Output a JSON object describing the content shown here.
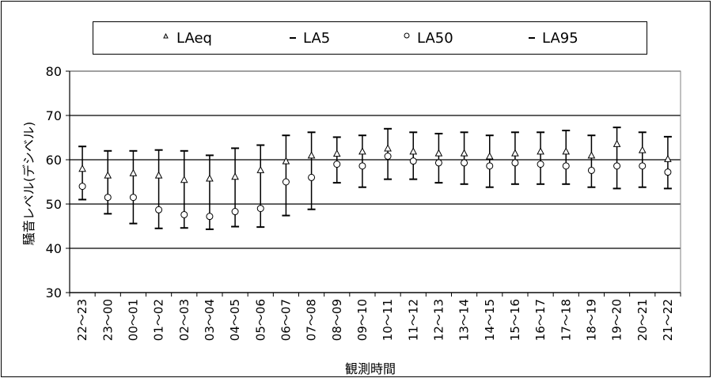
{
  "chart_data": {
    "type": "scatter",
    "ylabel": "騒音レベル(デシベル)",
    "xlabel": "観測時間",
    "ylim": [
      30,
      80
    ],
    "yticks": [
      30,
      40,
      50,
      60,
      70,
      80
    ],
    "grid": "horizontal",
    "legend_placement": "top",
    "categories": [
      "22～23",
      "23～00",
      "00～01",
      "01～02",
      "02～03",
      "03～04",
      "04～05",
      "05～06",
      "06～07",
      "07～08",
      "08～09",
      "09～10",
      "10～11",
      "11～12",
      "12～13",
      "13～14",
      "14～15",
      "15～16",
      "16～17",
      "17～18",
      "18～19",
      "19～20",
      "20～21",
      "21～22"
    ],
    "series": [
      {
        "name": "LAeq",
        "marker": "triangle",
        "values": [
          58,
          56.5,
          57,
          56.5,
          55.5,
          55.8,
          56.2,
          57.7,
          59.7,
          61,
          61.4,
          61.9,
          62.6,
          61.9,
          61.5,
          61.5,
          60.8,
          61.5,
          61.9,
          61.9,
          61,
          63.6,
          62.2,
          60.2
        ]
      },
      {
        "name": "LA5",
        "marker": "dash",
        "values": [
          63,
          62,
          62,
          62.2,
          62,
          61,
          62.6,
          63.3,
          65.5,
          66.2,
          65.1,
          65.5,
          67,
          66.2,
          65.9,
          66.2,
          65.5,
          66.2,
          66.2,
          66.6,
          65.5,
          67.3,
          66.2,
          65.2
        ]
      },
      {
        "name": "LA50",
        "marker": "circle",
        "values": [
          54,
          51.5,
          51.5,
          48.7,
          47.6,
          47.2,
          48.3,
          49,
          55,
          56,
          59,
          58.6,
          60.8,
          59.7,
          59.3,
          59.3,
          58.6,
          59.3,
          59,
          58.6,
          57.6,
          58.6,
          58.6,
          57.2
        ]
      },
      {
        "name": "LA95",
        "marker": "dash",
        "values": [
          51,
          47.8,
          45.6,
          44.5,
          44.6,
          44.3,
          44.9,
          44.8,
          47.4,
          48.8,
          54.8,
          53.8,
          55.6,
          55.6,
          54.8,
          54.5,
          53.8,
          54.5,
          54.5,
          54.5,
          53.8,
          53.5,
          53.8,
          53.5
        ]
      }
    ]
  }
}
